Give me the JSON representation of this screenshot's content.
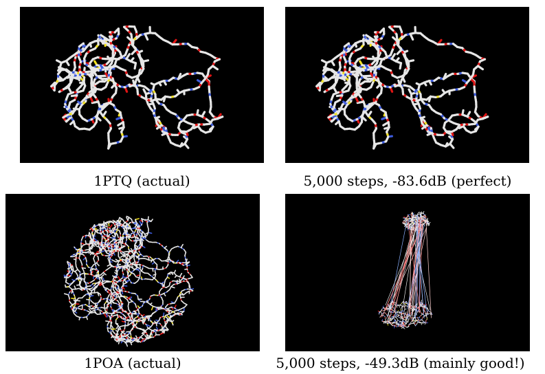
{
  "figure": {
    "panels": [
      {
        "caption": "1PTQ (actual)",
        "content": "protein-structure-render"
      },
      {
        "caption": "5,000 steps, -83.6dB (perfect)",
        "content": "protein-structure-render"
      },
      {
        "caption": "1POA (actual)",
        "content": "protein-structure-render"
      },
      {
        "caption": "5,000 steps, -49.3dB (mainly good!)",
        "content": "protein-structure-render"
      }
    ]
  },
  "colors": {
    "background": "#000000",
    "carbon": "#e6e6e6",
    "nitrogen": "#3d5bdc",
    "oxygen": "#e01414",
    "sulfur": "#f0e020"
  }
}
